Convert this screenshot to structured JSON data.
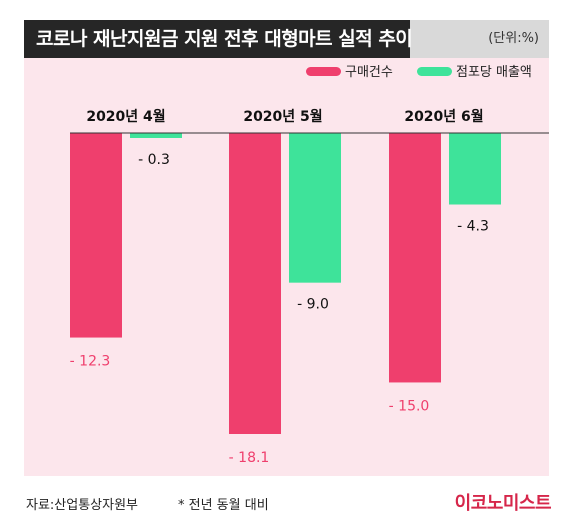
{
  "title": "코로나 재난지원금 지원 전후 대형마트 실적 추이",
  "unit": "(단위:%)",
  "source": "자료:산업통상자원부",
  "note": "* 전년 동월 대비",
  "logo": "이코노미스트",
  "chart_data": {
    "type": "bar",
    "categories": [
      "2020년 4월",
      "2020년 5월",
      "2020년 6월"
    ],
    "series": [
      {
        "name": "구매건수",
        "color": "#ef3f6d",
        "values": [
          -12.3,
          -18.1,
          -15.0
        ],
        "labels": [
          "- 12.3",
          "- 18.1",
          "- 15.0"
        ]
      },
      {
        "name": "점포당 매출액",
        "color": "#3ee39a",
        "values": [
          -0.3,
          -9.0,
          -4.3
        ],
        "labels": [
          "- 0.3",
          "- 9.0",
          "- 4.3"
        ]
      }
    ],
    "ylim": [
      -19.5,
      0
    ],
    "grid": false,
    "legend_position": "top-right",
    "label_color": "#ef3f6d"
  }
}
